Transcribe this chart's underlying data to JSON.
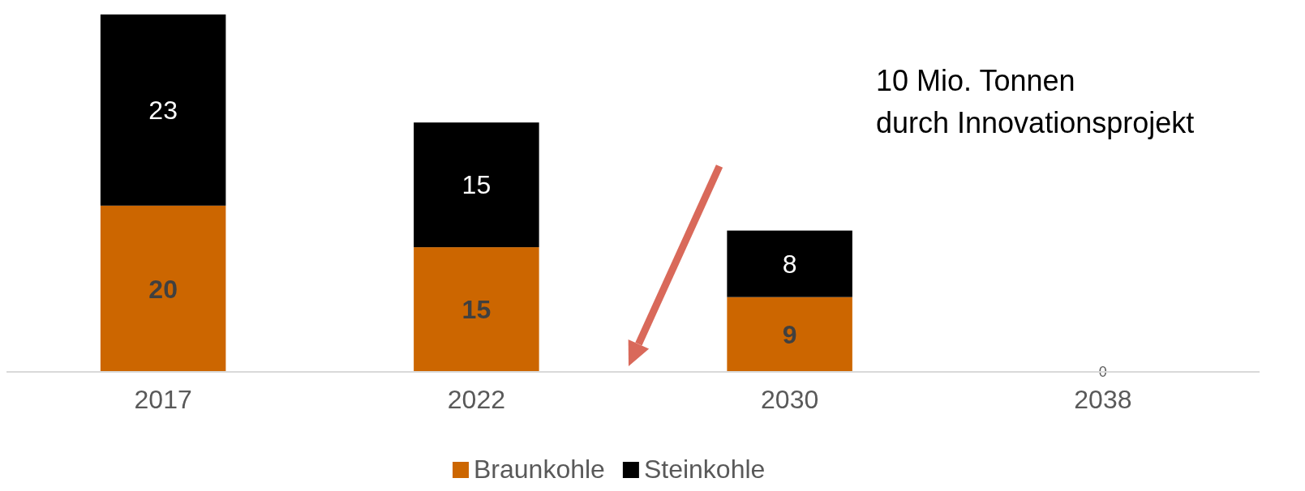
{
  "chart_data": {
    "type": "bar",
    "stacked": true,
    "categories": [
      "2017",
      "2022",
      "2030",
      "2038"
    ],
    "series": [
      {
        "name": "Braunkohle",
        "color": "#cc6600",
        "values": [
          20,
          15,
          9,
          0
        ],
        "value_labels": [
          "20",
          "15",
          "9",
          null
        ]
      },
      {
        "name": "Steinkohle",
        "color": "#000000",
        "values": [
          23,
          15,
          8,
          0
        ],
        "value_labels": [
          "23",
          "15",
          "8",
          "0"
        ]
      }
    ],
    "legend": "bottom",
    "grid": false,
    "annotations": [
      "10 Mio. Tonnen",
      "durch Innovationsprojekt"
    ]
  }
}
